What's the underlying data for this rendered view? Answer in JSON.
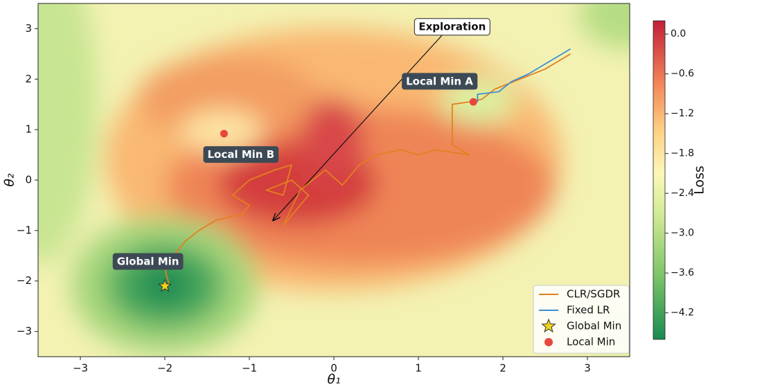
{
  "chart_data": {
    "type": "contour",
    "xlabel": "θ₁",
    "ylabel": "θ₂",
    "xlim": [
      -3.5,
      3.5
    ],
    "ylim": [
      -3.5,
      3.5
    ],
    "xticks": [
      {
        "value": -3,
        "label": "−3"
      },
      {
        "value": -2,
        "label": "−2"
      },
      {
        "value": -1,
        "label": "−1"
      },
      0,
      1,
      2,
      3
    ],
    "yticks": [
      {
        "value": -3,
        "label": "−3"
      },
      {
        "value": -2,
        "label": "−2"
      },
      {
        "value": -1,
        "label": "−1"
      },
      0,
      1,
      2,
      3
    ],
    "colorbar": {
      "label": "Loss",
      "clim": [
        -4.6,
        0.2
      ],
      "ticks": [
        {
          "value": 0,
          "label": "0.0"
        },
        {
          "value": -0.6,
          "label": "−0.6"
        },
        {
          "value": -1.2,
          "label": "−1.2"
        },
        {
          "value": -1.8,
          "label": "−1.8"
        },
        {
          "value": -2.4,
          "label": "−2.4"
        },
        {
          "value": -3.0,
          "label": "−3.0"
        },
        {
          "value": -3.6,
          "label": "−3.6"
        },
        {
          "value": -4.2,
          "label": "−4.2"
        }
      ]
    },
    "series": [
      {
        "name": "CLR/SGDR",
        "color": "#e2801f",
        "x": [
          -2.0,
          -1.95,
          -1.98,
          -2.0,
          -1.85,
          -1.75,
          -1.6,
          -1.4,
          -1.2,
          -1.1,
          -1.0,
          -1.2,
          -1.0,
          -0.7,
          -0.5,
          -0.6,
          -0.8,
          -0.5,
          -0.3,
          -0.6,
          -0.4,
          -0.1,
          0.1,
          0.3,
          0.5,
          0.8,
          1.0,
          1.2,
          1.6,
          1.4,
          1.4,
          1.4,
          1.6,
          1.75,
          1.9,
          2.2,
          2.5,
          2.8
        ],
        "y": [
          -2.1,
          -2.05,
          -1.9,
          -1.7,
          -1.4,
          -1.2,
          -1.0,
          -0.8,
          -0.72,
          -0.7,
          -0.5,
          -0.3,
          0.0,
          0.2,
          0.3,
          -0.3,
          -0.2,
          0.0,
          -0.3,
          -0.9,
          -0.2,
          0.2,
          -0.1,
          0.3,
          0.5,
          0.6,
          0.5,
          0.6,
          0.5,
          0.7,
          1.2,
          1.5,
          1.55,
          1.6,
          1.8,
          2.0,
          2.2,
          2.5
        ]
      },
      {
        "name": "Fixed LR",
        "color": "#3b8fd2",
        "x": [
          1.7,
          1.7,
          1.95,
          2.1,
          2.3,
          2.5,
          2.65,
          2.8
        ],
        "y": [
          1.55,
          1.7,
          1.75,
          1.95,
          2.1,
          2.3,
          2.45,
          2.6
        ]
      }
    ],
    "points": [
      {
        "name": "Global Min",
        "marker": "star",
        "color": "#f2d21b",
        "x": [
          -2.0
        ],
        "y": [
          -2.1
        ]
      },
      {
        "name": "Local Min",
        "marker": "circle",
        "color": "#e8473c",
        "x": [
          1.65,
          -1.3
        ],
        "y": [
          1.55,
          0.92
        ]
      }
    ],
    "annotations": [
      {
        "text": "Exploration",
        "x": 1.4,
        "y": 3.03,
        "arrow_to": [
          -0.72,
          -0.8
        ],
        "style": "light"
      },
      {
        "text": "Local Min A",
        "x": 1.25,
        "y": 1.95,
        "style": "dark"
      },
      {
        "text": "Local Min B",
        "x": -1.1,
        "y": 0.5,
        "style": "dark"
      },
      {
        "text": "Global Min",
        "x": -2.2,
        "y": -1.62,
        "style": "dark"
      }
    ],
    "legend": "lower right"
  }
}
